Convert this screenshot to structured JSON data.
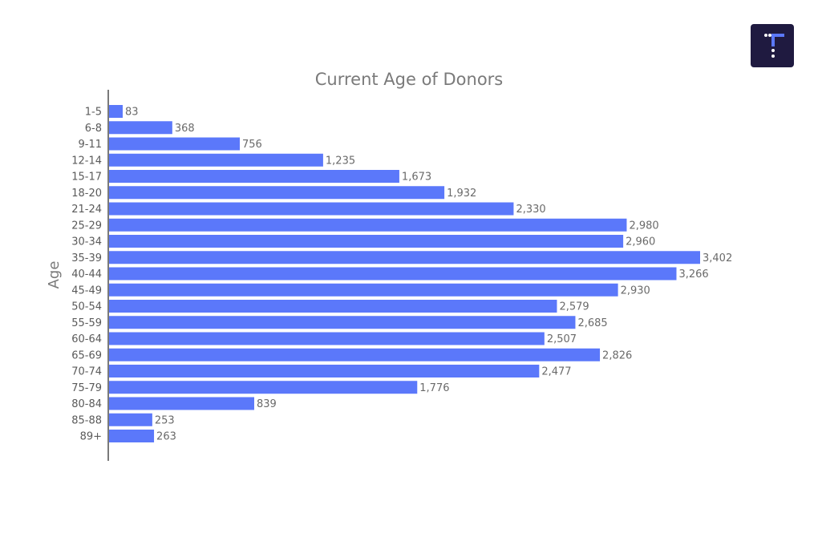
{
  "chart_data": {
    "type": "bar",
    "orientation": "horizontal",
    "title": "Current Age of Donors",
    "ylabel": "Age",
    "xlabel": "",
    "categories": [
      "1-5",
      "6-8",
      "9-11",
      "12-14",
      "15-17",
      "18-20",
      "21-24",
      "25-29",
      "30-34",
      "35-39",
      "40-44",
      "45-49",
      "50-54",
      "55-59",
      "60-64",
      "65-69",
      "70-74",
      "75-79",
      "80-84",
      "85-88",
      "89+"
    ],
    "values": [
      83,
      368,
      756,
      1235,
      1673,
      1932,
      2330,
      2980,
      2960,
      3402,
      3266,
      2930,
      2579,
      2685,
      2507,
      2826,
      2477,
      1776,
      839,
      253,
      263
    ],
    "value_labels": [
      "83",
      "368",
      "756",
      "1,235",
      "1,673",
      "1,932",
      "2,330",
      "2,980",
      "2,960",
      "3,402",
      "3,266",
      "2,930",
      "2,579",
      "2,685",
      "2,507",
      "2,826",
      "2,477",
      "1,776",
      "839",
      "253",
      "263"
    ],
    "xlim": [
      0,
      3402
    ],
    "grid": false,
    "bar_color": "#5b78fa"
  },
  "logo": {
    "icon": "tableau-t-logo",
    "background": "#1f1a40",
    "accent": "#5b78fa"
  }
}
